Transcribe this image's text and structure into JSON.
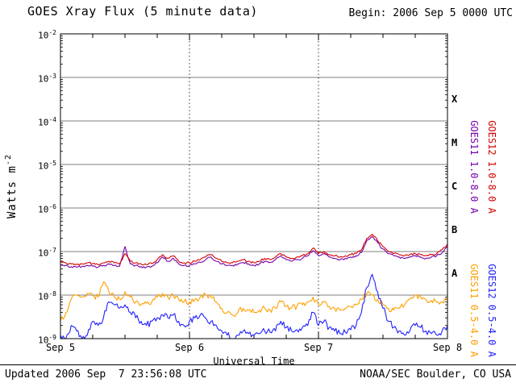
{
  "header": {
    "title": "GOES Xray Flux (5 minute data)",
    "begin": "Begin: 2006 Sep 5 0000 UTC"
  },
  "footer": {
    "updated": "Updated 2006 Sep  7 23:56:08 UTC",
    "source": "NOAA/SEC Boulder, CO USA"
  },
  "axes": {
    "xlabel": "Universal Time",
    "ylabel_prefix": "Watts m",
    "ylabel_sup": "-2"
  },
  "series_labels": [
    {
      "text": "GOES11 1.0-8.0 A",
      "color": "#7700aa"
    },
    {
      "text": "GOES12 1.0-8.0 A",
      "color": "#d40000"
    },
    {
      "text": "GOES11 0.5-4.0 A",
      "color": "#ff9f00"
    },
    {
      "text": "GOES12 0.5-4.0 A",
      "color": "#2020ff"
    }
  ],
  "chart_data": {
    "type": "line",
    "title": "GOES Xray Flux (5 minute data)",
    "x_unit": "hours since 2006 Sep 5 0000 UTC",
    "x_start": 0,
    "x_end": 72,
    "x_step": 1,
    "x_day_ticks": [
      {
        "hour": 0,
        "label": "Sep 5"
      },
      {
        "hour": 24,
        "label": "Sep 6"
      },
      {
        "hour": 48,
        "label": "Sep 7"
      },
      {
        "hour": 72,
        "label": "Sep 8"
      }
    ],
    "y_scale": "log",
    "ylim": [
      1e-09,
      0.01
    ],
    "y_tick_exponents": [
      -2,
      -3,
      -4,
      -5,
      -6,
      -7,
      -8,
      -9
    ],
    "flux_classes": [
      {
        "letter": "X",
        "band_exponents": [
          -4,
          -3
        ]
      },
      {
        "letter": "M",
        "band_exponents": [
          -5,
          -4
        ]
      },
      {
        "letter": "C",
        "band_exponents": [
          -6,
          -5
        ]
      },
      {
        "letter": "B",
        "band_exponents": [
          -7,
          -6
        ]
      },
      {
        "letter": "A",
        "band_exponents": [
          -8,
          -7
        ]
      }
    ],
    "grid": {
      "horizontal_decades": [
        -3,
        -4,
        -5,
        -6,
        -7,
        -8
      ],
      "vertical_dotted_hours": [
        24,
        48
      ]
    },
    "series": [
      {
        "id": "goes11-short",
        "name": "GOES11 0.5-4.0 A",
        "color": "#ff9f00",
        "jitter": 0.07,
        "values": [
          2.5e-09,
          4e-09,
          8e-09,
          1e-08,
          9e-09,
          1.1e-08,
          1e-08,
          9e-09,
          2e-08,
          1.2e-08,
          9e-09,
          8e-09,
          1.2e-08,
          9e-09,
          7e-09,
          6e-09,
          6.5e-09,
          7e-09,
          9e-09,
          1.1e-08,
          9e-09,
          1e-08,
          8e-09,
          7e-09,
          7e-09,
          8e-09,
          9e-09,
          1e-08,
          9e-09,
          7e-09,
          5e-09,
          4e-09,
          3.5e-09,
          4e-09,
          5e-09,
          4.5e-09,
          4e-09,
          4.5e-09,
          5e-09,
          4.5e-09,
          5e-09,
          7e-09,
          5.5e-09,
          5e-09,
          5.5e-09,
          6e-09,
          7e-09,
          9e-09,
          6e-09,
          7e-09,
          5.5e-09,
          5e-09,
          4.5e-09,
          5e-09,
          5.5e-09,
          6e-09,
          8e-09,
          1.1e-08,
          1e-08,
          8e-09,
          6e-09,
          5e-09,
          4.5e-09,
          5e-09,
          6e-09,
          8e-09,
          1e-08,
          9e-09,
          8e-09,
          7.5e-09,
          7e-09,
          7e-09,
          7.5e-09
        ]
      },
      {
        "id": "goes12-short",
        "name": "GOES12 0.5-4.0 A",
        "color": "#2020ff",
        "jitter": 0.08,
        "values": [
          1.2e-09,
          1e-09,
          2e-09,
          1.5e-09,
          9e-10,
          1.2e-09,
          2.5e-09,
          2e-09,
          3e-09,
          7e-09,
          6e-09,
          5e-09,
          6e-09,
          4e-09,
          3e-09,
          2.5e-09,
          2e-09,
          2.5e-09,
          3e-09,
          3.5e-09,
          3e-09,
          3.5e-09,
          2.5e-09,
          2e-09,
          2.5e-09,
          3e-09,
          3.5e-09,
          3e-09,
          2.5e-09,
          2e-09,
          1.5e-09,
          1.2e-09,
          1e-09,
          1.2e-09,
          1.5e-09,
          1.3e-09,
          1.2e-09,
          1.3e-09,
          1.5e-09,
          1.4e-09,
          1.5e-09,
          2.5e-09,
          1.8e-09,
          1.5e-09,
          1.6e-09,
          1.8e-09,
          2e-09,
          4e-09,
          2e-09,
          2.5e-09,
          1.8e-09,
          1.5e-09,
          1.3e-09,
          1.4e-09,
          1.6e-09,
          2e-09,
          4e-09,
          1.5e-08,
          3e-08,
          1.2e-08,
          5e-09,
          2.5e-09,
          1.8e-09,
          1.5e-09,
          1.2e-09,
          1.5e-09,
          2e-09,
          1.8e-09,
          1.5e-09,
          1.3e-09,
          1.2e-09,
          1.5e-09,
          2e-09
        ]
      },
      {
        "id": "goes11-long",
        "name": "GOES11 1.0-8.0 A",
        "color": "#7700aa",
        "jitter": 0.025,
        "values": [
          5e-08,
          4.8e-08,
          4.5e-08,
          4.4e-08,
          4.5e-08,
          4.8e-08,
          4.6e-08,
          4.4e-08,
          4.8e-08,
          5.2e-08,
          4.8e-08,
          4.6e-08,
          1.3e-07,
          5.2e-08,
          4.8e-08,
          4.5e-08,
          4.4e-08,
          4.6e-08,
          5.5e-08,
          7.5e-08,
          6e-08,
          7e-08,
          5.2e-08,
          4.8e-08,
          4.8e-08,
          5.2e-08,
          5.6e-08,
          6.5e-08,
          7.5e-08,
          6e-08,
          5.2e-08,
          4.8e-08,
          4.8e-08,
          5.2e-08,
          5.6e-08,
          5.2e-08,
          4.8e-08,
          5.2e-08,
          6e-08,
          5.6e-08,
          6.5e-08,
          8e-08,
          6.5e-08,
          6e-08,
          6.5e-08,
          7e-08,
          8e-08,
          1.05e-07,
          8e-08,
          9e-08,
          7.5e-08,
          7e-08,
          6.5e-08,
          7e-08,
          7.5e-08,
          8e-08,
          9.5e-08,
          1.8e-07,
          2.2e-07,
          1.6e-07,
          1.15e-07,
          9e-08,
          8e-08,
          7.5e-08,
          7e-08,
          7.5e-08,
          8e-08,
          7.5e-08,
          7e-08,
          7.5e-08,
          8e-08,
          9.5e-08,
          1.3e-07
        ]
      },
      {
        "id": "goes12-long",
        "name": "GOES12 1.0-8.0 A",
        "color": "#d40000",
        "jitter": 0.025,
        "values": [
          6e-08,
          5.5e-08,
          5.2e-08,
          5e-08,
          5.2e-08,
          5.5e-08,
          5.3e-08,
          5e-08,
          5.5e-08,
          6e-08,
          5.5e-08,
          5.2e-08,
          9e-08,
          6e-08,
          5.5e-08,
          5.2e-08,
          5e-08,
          5.3e-08,
          6.5e-08,
          8.5e-08,
          7e-08,
          8e-08,
          6e-08,
          5.5e-08,
          5.5e-08,
          6e-08,
          6.5e-08,
          7.5e-08,
          8.5e-08,
          7e-08,
          6e-08,
          5.5e-08,
          5.5e-08,
          6e-08,
          6.5e-08,
          6e-08,
          5.5e-08,
          6e-08,
          7e-08,
          6.5e-08,
          7.5e-08,
          9e-08,
          7.5e-08,
          7e-08,
          7.5e-08,
          8e-08,
          9e-08,
          1.2e-07,
          9e-08,
          1e-07,
          8.5e-08,
          8e-08,
          7.5e-08,
          8e-08,
          8.5e-08,
          9e-08,
          1.1e-07,
          2e-07,
          2.5e-07,
          1.8e-07,
          1.3e-07,
          1e-07,
          9e-08,
          8.5e-08,
          8e-08,
          8.5e-08,
          9e-08,
          8.5e-08,
          8e-08,
          8.5e-08,
          9e-08,
          1.1e-07,
          1.5e-07
        ]
      }
    ]
  }
}
